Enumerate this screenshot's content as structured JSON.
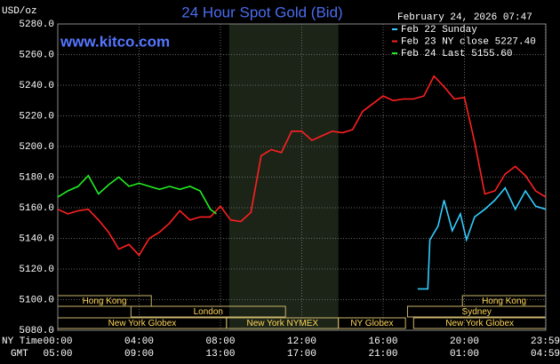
{
  "chart_data": {
    "type": "line",
    "title": "24 Hour Spot Gold (Bid)",
    "watermark": "www.kitco.com",
    "timestamp": "February 24, 2026 07:47",
    "ylabel": "USD/oz",
    "xlabel_top": "NY Time",
    "xlabel_bottom": "GMT",
    "xlim": [
      0,
      24
    ],
    "ylim": [
      5080,
      5280
    ],
    "grid": true,
    "legend": "top-right",
    "xticks": [
      {
        "value": 0,
        "label": "00:00"
      },
      {
        "value": 4,
        "label": "04:00"
      },
      {
        "value": 8,
        "label": "08:00"
      },
      {
        "value": 12,
        "label": "12:00"
      },
      {
        "value": 16,
        "label": "16:00"
      },
      {
        "value": 20,
        "label": "20:00"
      },
      {
        "value": 23.98,
        "label": "23:59"
      }
    ],
    "gmt_labels": [
      "05:00",
      "09:00",
      "13:00",
      "17:00",
      "21:00",
      "01:00",
      "04:59"
    ],
    "yticks": [
      {
        "value": 5080,
        "label": "5080.0"
      },
      {
        "value": 5100,
        "label": "5100.0"
      },
      {
        "value": 5120,
        "label": "5120.0"
      },
      {
        "value": 5140,
        "label": "5140.0"
      },
      {
        "value": 5160,
        "label": "5160.0"
      },
      {
        "value": 5180,
        "label": "5180.0"
      },
      {
        "value": 5200,
        "label": "5200.0"
      },
      {
        "value": 5220,
        "label": "5220.0"
      },
      {
        "value": 5240,
        "label": "5240.0"
      },
      {
        "value": 5260,
        "label": "5260.0"
      },
      {
        "value": 5280,
        "label": "5280.0"
      }
    ],
    "sessions": [
      {
        "label": "Hong Kong",
        "start": 0,
        "end": 4.6,
        "row": 0
      },
      {
        "label": "London",
        "start": 3.6,
        "end": 11.2,
        "row": 1
      },
      {
        "label": "New York Globex",
        "start": 0,
        "end": 8.3,
        "row": 2
      },
      {
        "label": "New York NYMEX",
        "start": 8.3,
        "end": 13.8,
        "row": 2,
        "shade": true
      },
      {
        "label": "NY Globex",
        "start": 13.8,
        "end": 17.1,
        "row": 2
      },
      {
        "label": "Hong Kong",
        "start": 19.9,
        "end": 24,
        "row": 0
      },
      {
        "label": "Sydney",
        "start": 17.2,
        "end": 24,
        "row": 1
      },
      {
        "label": "New York Globex",
        "start": 17.5,
        "end": 24,
        "row": 2
      }
    ],
    "series": [
      {
        "name": "Feb 22 Sunday",
        "color": "#33ccff",
        "x": [
          17.7,
          18.2,
          18.3,
          18.7,
          19,
          19.4,
          19.8,
          20.1,
          20.5,
          21,
          21.5,
          22,
          22.5,
          23,
          23.5,
          24
        ],
        "values": [
          5107,
          5107,
          5139,
          5148,
          5165,
          5145,
          5156,
          5139,
          5154,
          5159,
          5165,
          5173,
          5159,
          5171,
          5161,
          5159
        ]
      },
      {
        "name": "Feb 23 NY close 5227.40",
        "color": "#ff2020",
        "x": [
          0,
          0.5,
          1,
          1.5,
          2,
          2.5,
          3,
          3.5,
          4,
          4.5,
          5,
          5.5,
          6,
          6.5,
          7,
          7.5,
          8,
          8.5,
          9,
          9.5,
          10,
          10.5,
          11,
          11.5,
          12,
          12.5,
          13,
          13.5,
          14,
          14.5,
          15,
          15.5,
          16,
          16.5,
          17,
          17.5,
          18,
          18.5,
          19,
          19.5,
          20,
          20.5,
          21,
          21.5,
          22,
          22.5,
          23,
          23.5,
          24
        ],
        "values": [
          5159,
          5156,
          5158,
          5159,
          5152,
          5144,
          5133,
          5136,
          5129,
          5140,
          5144,
          5150,
          5158,
          5152,
          5154,
          5154,
          5161,
          5152,
          5151,
          5157,
          5194,
          5198,
          5196,
          5210,
          5210,
          5204,
          5207,
          5210,
          5209,
          5211,
          5223,
          5228,
          5233,
          5230,
          5231,
          5231,
          5233,
          5246,
          5239,
          5231,
          5232,
          5203,
          5169,
          5171,
          5182,
          5187,
          5181,
          5171,
          5167
        ]
      },
      {
        "name": "Feb 24 Last 5155.60",
        "color": "#22ee22",
        "x": [
          0,
          0.5,
          1,
          1.5,
          2,
          2.5,
          3,
          3.5,
          4,
          4.5,
          5,
          5.5,
          6,
          6.5,
          7,
          7.5,
          7.8
        ],
        "values": [
          5167,
          5171,
          5174,
          5181,
          5169,
          5175,
          5180,
          5174,
          5176,
          5174,
          5172,
          5174,
          5172,
          5174,
          5171,
          5159,
          5156
        ]
      }
    ]
  }
}
